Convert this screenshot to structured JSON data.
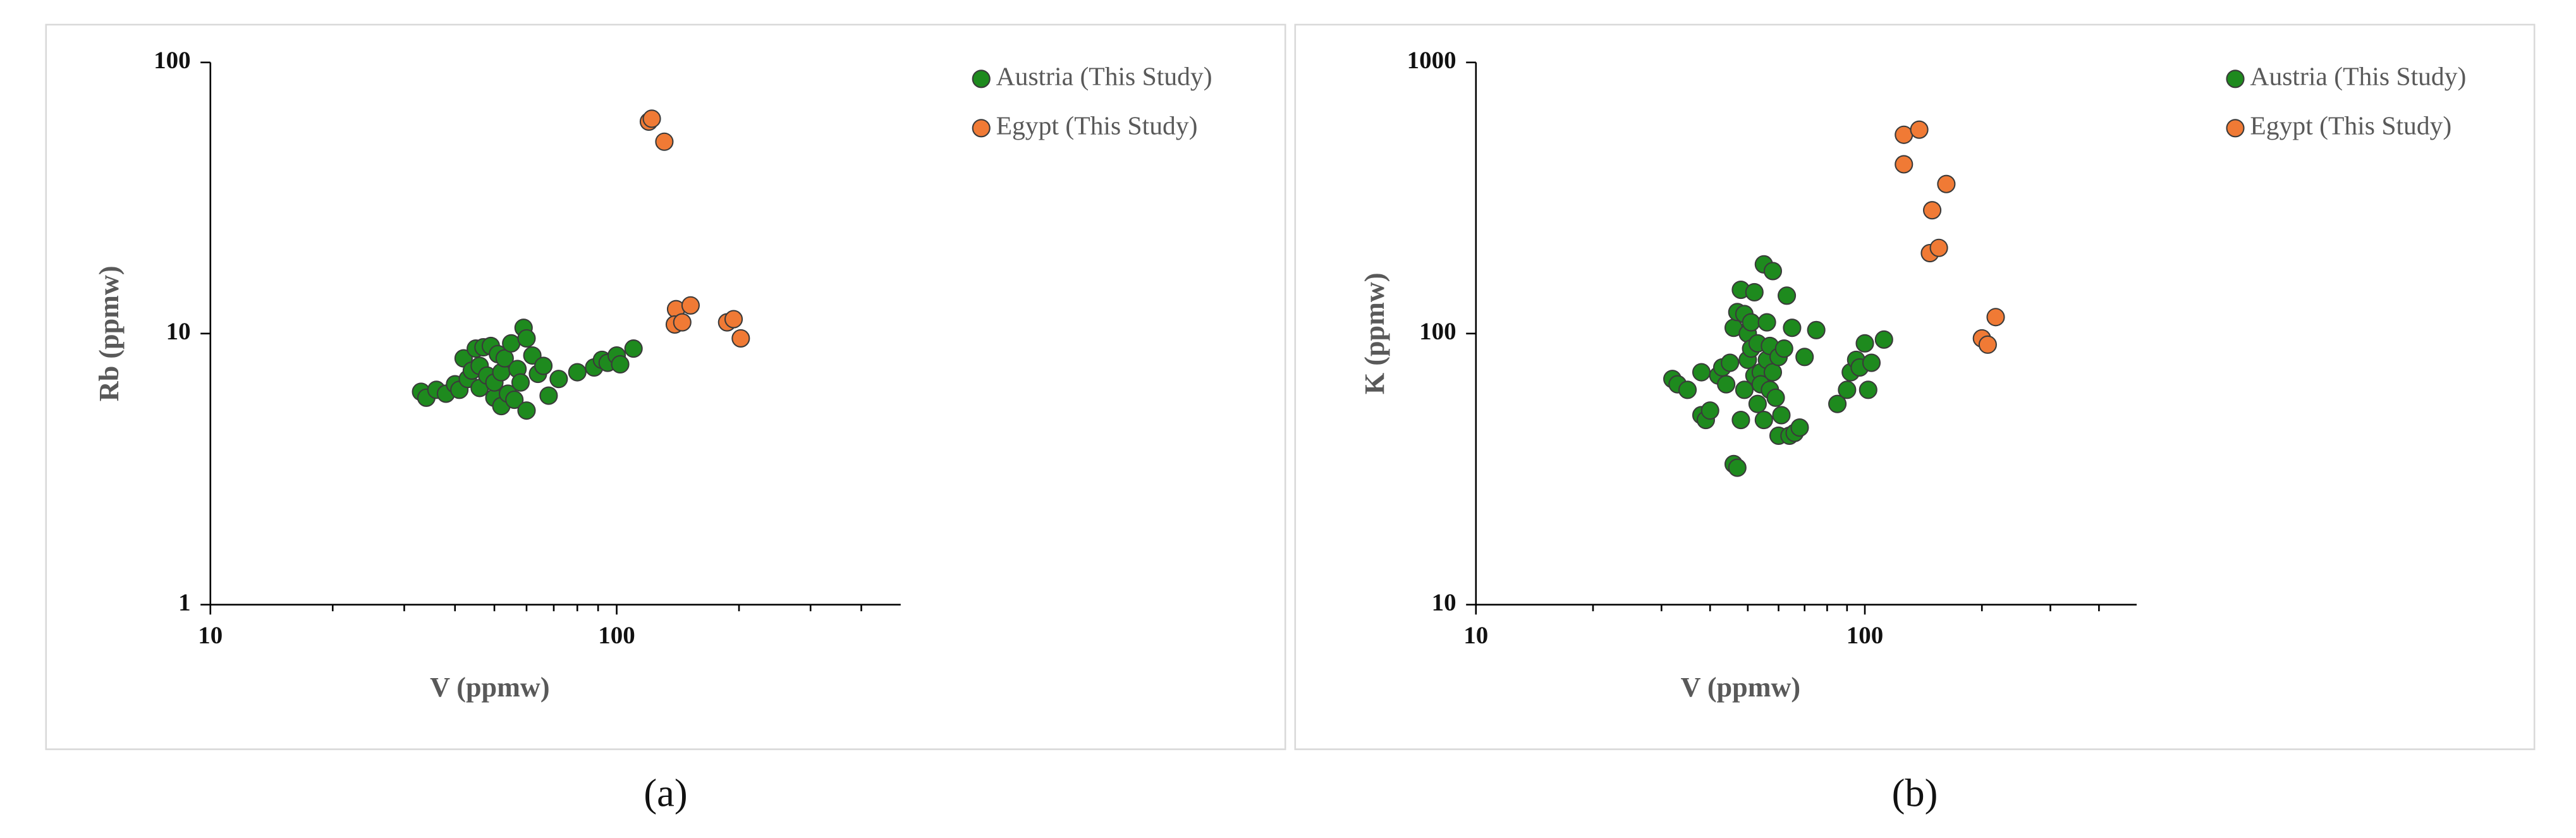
{
  "chart_data": [
    {
      "type": "scatter",
      "panel_label": "(a)",
      "x_label": "V (ppmw)",
      "y_label": "Rb (ppmw)",
      "xscale": "log",
      "yscale": "log",
      "xlim": [
        10,
        500
      ],
      "ylim": [
        1,
        100
      ],
      "xticks": [
        10,
        100
      ],
      "yticks": [
        1,
        10,
        100
      ],
      "xminor": [
        20,
        30,
        40,
        50,
        60,
        70,
        80,
        90,
        200,
        300,
        400
      ],
      "legend": "upper right",
      "series": [
        {
          "name": "Austria (This Study)",
          "color": "#1e8a1e",
          "x": [
            33,
            34,
            36,
            38,
            40,
            41,
            42,
            43,
            44,
            45,
            46,
            46,
            47,
            48,
            49,
            50,
            50,
            51,
            52,
            52,
            53,
            54,
            55,
            56,
            57,
            58,
            59,
            60,
            60,
            62,
            64,
            66,
            68,
            72,
            80,
            88,
            92,
            95,
            100,
            102,
            110
          ],
          "values": [
            6.1,
            5.8,
            6.2,
            6.0,
            6.5,
            6.2,
            8.1,
            6.8,
            7.3,
            8.8,
            7.6,
            6.3,
            8.9,
            7.0,
            9.0,
            5.8,
            6.6,
            8.4,
            5.4,
            7.2,
            8.1,
            6.0,
            9.2,
            5.7,
            7.4,
            6.6,
            10.5,
            9.6,
            5.2,
            8.3,
            7.1,
            7.6,
            5.9,
            6.8,
            7.2,
            7.5,
            8.0,
            7.8,
            8.3,
            7.7,
            8.8
          ]
        },
        {
          "name": "Egypt (This Study)",
          "color": "#f07a35",
          "x": [
            120,
            122,
            131,
            140,
            152,
            139,
            145,
            187,
            194,
            202
          ],
          "values": [
            60.5,
            62,
            51,
            12.3,
            12.7,
            10.8,
            11.0,
            11.0,
            11.3,
            9.6
          ]
        }
      ]
    },
    {
      "type": "scatter",
      "panel_label": "(b)",
      "x_label": "V (ppmw)",
      "y_label": "K (ppmw)",
      "xscale": "log",
      "yscale": "log",
      "xlim": [
        10,
        500
      ],
      "ylim": [
        10,
        1000
      ],
      "xticks": [
        10,
        100
      ],
      "yticks": [
        10,
        100,
        1000
      ],
      "xminor": [
        20,
        30,
        40,
        50,
        60,
        70,
        80,
        90,
        200,
        300,
        400
      ],
      "legend": "upper right",
      "series": [
        {
          "name": "Austria (This Study)",
          "color": "#1e8a1e",
          "x": [
            32,
            33,
            35,
            38,
            38,
            39,
            40,
            42,
            43,
            44,
            45,
            46,
            46,
            47,
            47,
            48,
            48,
            49,
            49,
            50,
            50,
            51,
            51,
            52,
            52,
            53,
            53,
            54,
            54,
            55,
            55,
            56,
            56,
            57,
            57,
            58,
            58,
            59,
            60,
            60,
            61,
            62,
            63,
            64,
            65,
            66,
            68,
            70,
            75,
            85,
            90,
            92,
            95,
            97,
            100,
            102,
            104,
            112
          ],
          "values": [
            68,
            65,
            62,
            72,
            50,
            48,
            52,
            70,
            75,
            65,
            78,
            105,
            33,
            120,
            32,
            145,
            48,
            118,
            62,
            80,
            100,
            110,
            88,
            70,
            142,
            92,
            55,
            72,
            65,
            180,
            48,
            110,
            80,
            90,
            62,
            170,
            72,
            58,
            82,
            42,
            50,
            88,
            138,
            42,
            105,
            43,
            45,
            82,
            103,
            55,
            62,
            72,
            80,
            75,
            92,
            62,
            78,
            95
          ]
        },
        {
          "name": "Egypt (This Study)",
          "color": "#f07a35",
          "x": [
            126,
            138,
            126,
            162,
            149,
            147,
            155,
            217,
            200,
            207
          ],
          "values": [
            541,
            565,
            421,
            356,
            285,
            198,
            207,
            115,
            96,
            91
          ]
        }
      ]
    }
  ]
}
